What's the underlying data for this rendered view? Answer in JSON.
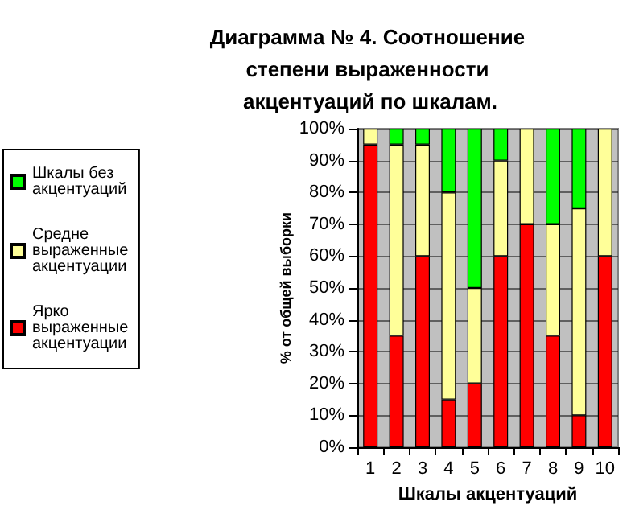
{
  "chart_data": {
    "type": "bar",
    "title": "Диаграмма № 4. Соотношение степени выраженности акцентуаций по шкалам.",
    "xlabel": "Шкалы акцентуаций",
    "ylabel": "% от общей выборки",
    "categories": [
      "1",
      "2",
      "3",
      "4",
      "5",
      "6",
      "7",
      "8",
      "9",
      "10"
    ],
    "stacked": true,
    "series": [
      {
        "name": "Ярко выраженные акцентуации",
        "color": "#ff0000",
        "values": [
          95,
          35,
          60,
          15,
          20,
          60,
          70,
          35,
          10,
          60
        ]
      },
      {
        "name": "Средне выраженные акцентуации",
        "color": "#ffff99",
        "values": [
          5,
          60,
          35,
          65,
          30,
          30,
          30,
          35,
          65,
          40
        ]
      },
      {
        "name": "Шкалы без акцентуаций",
        "color": "#00ff00",
        "values": [
          0,
          5,
          5,
          20,
          50,
          10,
          0,
          30,
          25,
          0
        ]
      }
    ],
    "ylim": [
      0,
      100
    ],
    "yticks": [
      {
        "value": 0,
        "label": "0%"
      },
      {
        "value": 10,
        "label": "10%"
      },
      {
        "value": 20,
        "label": "20%"
      },
      {
        "value": 30,
        "label": "30%"
      },
      {
        "value": 40,
        "label": "40%"
      },
      {
        "value": 50,
        "label": "50%"
      },
      {
        "value": 60,
        "label": "60%"
      },
      {
        "value": 70,
        "label": "70%"
      },
      {
        "value": 80,
        "label": "80%"
      },
      {
        "value": 90,
        "label": "90%"
      },
      {
        "value": 100,
        "label": "100%"
      }
    ],
    "grid": "y",
    "legend": "left"
  }
}
